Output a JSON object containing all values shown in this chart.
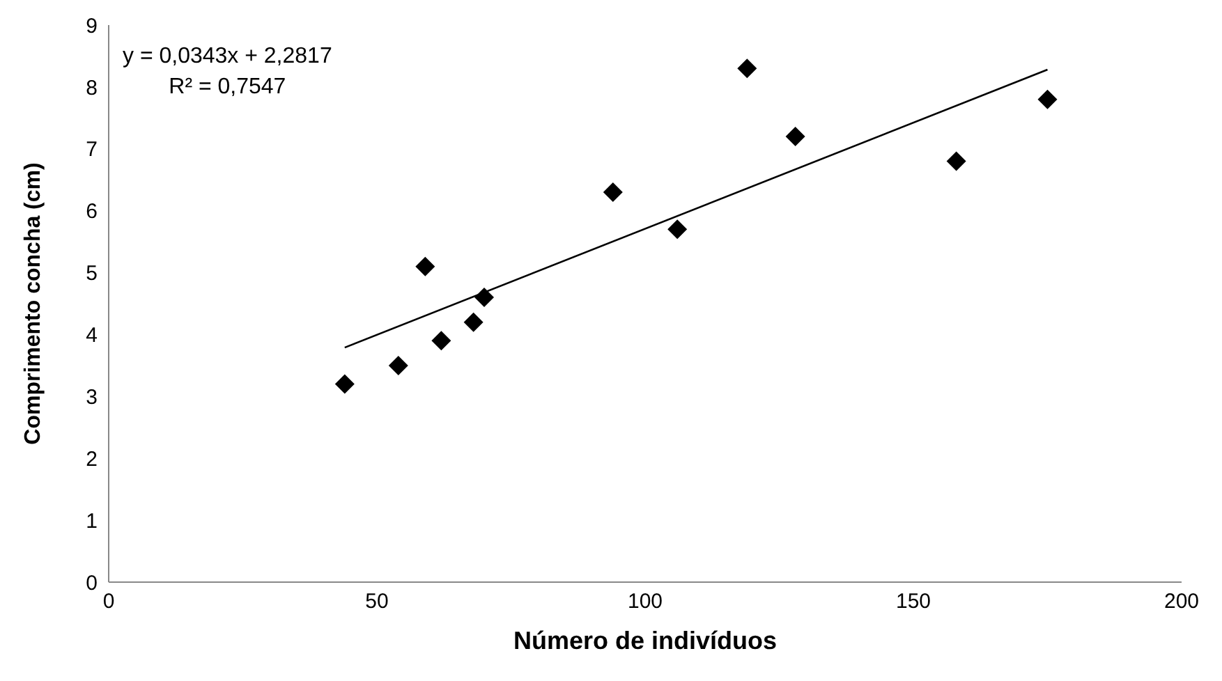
{
  "chart_data": {
    "type": "scatter",
    "xlabel": "Número de indivíduos",
    "ylabel": "Comprimento concha (cm)",
    "annotations": [
      "y = 0,0343x + 2,2817",
      "R² = 0,7547"
    ],
    "series": [
      {
        "color": "#000000",
        "marker": "diamond",
        "x": [
          44,
          54,
          59,
          62,
          68,
          70,
          94,
          106,
          119,
          128,
          158,
          175
        ],
        "values": [
          3.2,
          3.5,
          5.1,
          3.9,
          4.2,
          4.6,
          6.3,
          5.7,
          8.3,
          7.2,
          6.8,
          7.8
        ]
      },
      {
        "type": "line",
        "color": "#000000",
        "marker": "none",
        "x": [
          44,
          175
        ],
        "values": [
          3.79,
          8.28
        ]
      }
    ],
    "xlim": [
      0,
      200
    ],
    "xticks": [
      0,
      50,
      100,
      150,
      200
    ],
    "ylim": [
      0,
      9
    ],
    "yticks": [
      0,
      1,
      2,
      3,
      4,
      5,
      6,
      7,
      8,
      9
    ],
    "grid": false,
    "legend": false
  }
}
